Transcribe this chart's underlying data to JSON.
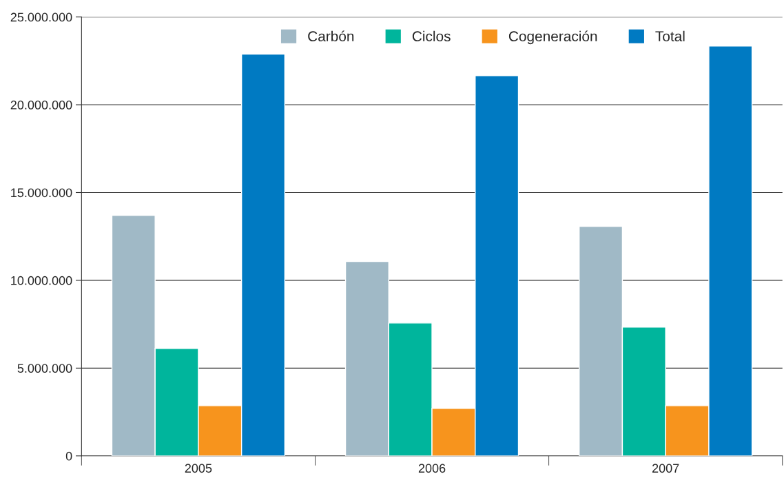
{
  "chart_data": {
    "type": "bar",
    "categories": [
      "2005",
      "2006",
      "2007"
    ],
    "series": [
      {
        "name": "Carbón",
        "color": "#a0b9c6",
        "values": [
          13700000,
          11070000,
          13070000
        ]
      },
      {
        "name": "Ciclos",
        "color": "#00b59c",
        "values": [
          6120000,
          7570000,
          7340000
        ]
      },
      {
        "name": "Cogeneración",
        "color": "#f7941d",
        "values": [
          2860000,
          2710000,
          2860000
        ]
      },
      {
        "name": "Total",
        "color": "#007ac2",
        "values": [
          22880000,
          21660000,
          23350000
        ]
      }
    ],
    "ylim": [
      0,
      25000000
    ],
    "yticks": [
      {
        "value": 0,
        "label": "0"
      },
      {
        "value": 5000000,
        "label": "5.000.000"
      },
      {
        "value": 10000000,
        "label": "10.000.000"
      },
      {
        "value": 15000000,
        "label": "15.000.000"
      },
      {
        "value": 20000000,
        "label": "20.000.000"
      },
      {
        "value": 25000000,
        "label": "25.000.000"
      }
    ],
    "grid": "y",
    "legend": "top right"
  }
}
